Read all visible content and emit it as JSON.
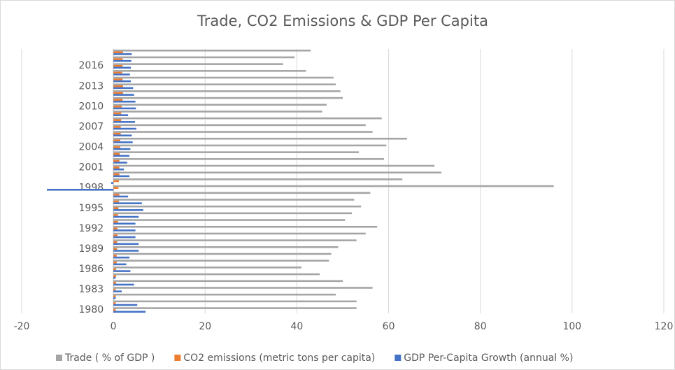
{
  "chart_data": {
    "type": "hbar",
    "title": "Trade, CO2 Emissions & GDP Per Capita",
    "categories": [
      "1980",
      null,
      null,
      "1983",
      null,
      null,
      "1986",
      null,
      null,
      "1989",
      null,
      null,
      "1992",
      null,
      null,
      "1995",
      null,
      null,
      "1998",
      null,
      null,
      "2001",
      null,
      null,
      "2004",
      null,
      null,
      "2007",
      null,
      null,
      "2010",
      null,
      null,
      "2013",
      null,
      null,
      "2016",
      null,
      null
    ],
    "series": [
      {
        "name": "Trade ( % of GDP )",
        "color": "#a5a5a5",
        "values": [
          53,
          53,
          48.5,
          56.5,
          50,
          45,
          41,
          47,
          47.5,
          49,
          53,
          55,
          57.5,
          50.5,
          52,
          54,
          52.5,
          56,
          96,
          63,
          71.5,
          70,
          59,
          53.5,
          59.5,
          64,
          56.5,
          55,
          58.5,
          45.5,
          46.5,
          50,
          49.5,
          48.5,
          48,
          42,
          37,
          39.5,
          43
        ]
      },
      {
        "name": "CO2 emissions (metric tons per capita)",
        "color": "#ed7d31",
        "values": [
          0.5,
          0.5,
          0.5,
          0.5,
          0.6,
          0.6,
          0.6,
          0.7,
          0.7,
          0.8,
          0.8,
          0.9,
          0.9,
          1.0,
          1.0,
          1.1,
          1.2,
          1.3,
          1.1,
          1.2,
          1.3,
          1.3,
          1.3,
          1.4,
          1.5,
          1.5,
          1.6,
          1.6,
          1.7,
          1.7,
          1.8,
          2.0,
          2.1,
          2.1,
          2.0,
          1.9,
          2.0,
          2.0,
          2.1
        ]
      },
      {
        "name": "GDP Per-Capita Growth (annual %)",
        "color": "#4472c4",
        "values": [
          7,
          5.2,
          0.5,
          1.8,
          4.5,
          0.5,
          3.7,
          2.8,
          3.5,
          5.5,
          5.5,
          4.8,
          4.8,
          4.8,
          5.5,
          6.5,
          6.2,
          3.2,
          -14.5,
          -0.5,
          3.5,
          2.3,
          3.0,
          3.5,
          3.7,
          4.2,
          4.0,
          5.0,
          4.7,
          3.2,
          4.9,
          4.8,
          4.5,
          4.3,
          3.8,
          3.6,
          3.8,
          3.9,
          4.0
        ]
      }
    ],
    "xlim": [
      -20,
      120
    ],
    "xticks": [
      -20,
      0,
      20,
      40,
      60,
      80,
      100,
      120
    ],
    "grid": true
  }
}
